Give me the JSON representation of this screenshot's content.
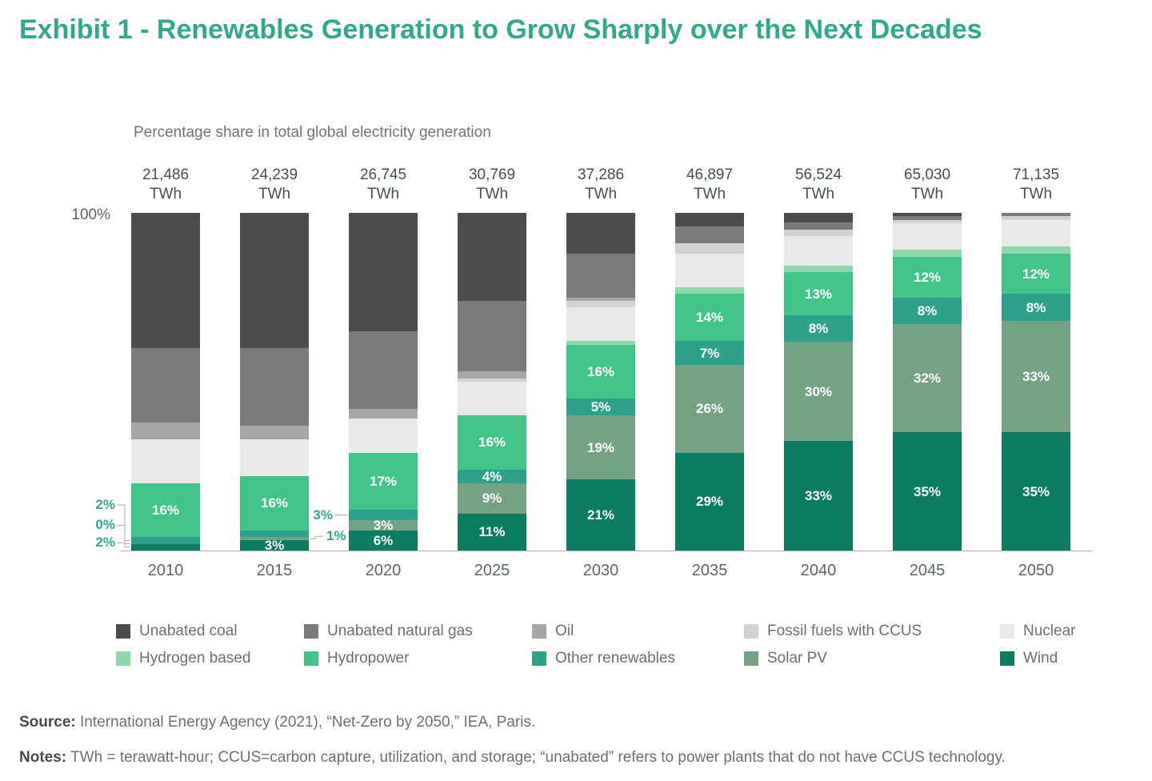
{
  "header": {
    "title": "Exhibit 1 - Renewables Generation to Grow Sharply over the Next Decades"
  },
  "chart_data": {
    "type": "bar",
    "variant": "stacked-percent",
    "subtitle": "Percentage share in total global electricity generation",
    "y_axis_top_label": "100%",
    "ylim": [
      0,
      100
    ],
    "categories": [
      "2010",
      "2015",
      "2020",
      "2025",
      "2030",
      "2035",
      "2040",
      "2045",
      "2050"
    ],
    "totals_twh": [
      "21,486",
      "24,239",
      "26,745",
      "30,769",
      "37,286",
      "46,897",
      "56,524",
      "65,030",
      "71,135"
    ],
    "totals_unit": "TWh",
    "series_bottom_up": [
      {
        "name": "Wind",
        "color": "#0b7b62",
        "values": [
          2,
          3,
          6,
          11,
          21,
          29,
          33,
          35,
          35
        ],
        "labels": [
          null,
          "3%",
          "6%",
          "11%",
          "21%",
          "29%",
          "33%",
          "35%",
          "35%"
        ]
      },
      {
        "name": "Solar PV",
        "color": "#73a284",
        "values": [
          0,
          1,
          3,
          9,
          19,
          26,
          30,
          32,
          33
        ],
        "labels": [
          null,
          null,
          "3%",
          "9%",
          "19%",
          "26%",
          "30%",
          "32%",
          "33%"
        ]
      },
      {
        "name": "Other renewables",
        "color": "#2da18c",
        "values": [
          2,
          2,
          3,
          4,
          5,
          7,
          8,
          8,
          8
        ],
        "labels": [
          null,
          null,
          null,
          "4%",
          "5%",
          "7%",
          "8%",
          "8%",
          "8%"
        ]
      },
      {
        "name": "Hydropower",
        "color": "#41c489",
        "values": [
          16,
          16,
          17,
          16,
          16,
          14,
          13,
          12,
          12
        ],
        "labels": [
          "16%",
          "16%",
          "17%",
          "16%",
          "16%",
          "14%",
          "13%",
          "12%",
          "12%"
        ]
      },
      {
        "name": "Hydrogen based",
        "color": "#8ed9ab",
        "values": [
          0,
          0,
          0,
          0,
          1,
          2,
          2,
          2,
          2
        ],
        "labels": [
          null,
          null,
          null,
          null,
          null,
          null,
          null,
          null,
          null
        ]
      },
      {
        "name": "Nuclear",
        "color": "#e9e9e7",
        "values": [
          13,
          11,
          10,
          10,
          10,
          10,
          9,
          8,
          8
        ],
        "labels": [
          null,
          null,
          null,
          null,
          null,
          null,
          null,
          null,
          null
        ]
      },
      {
        "name": "Fossil fuels with CCUS",
        "color": "#d2d2d0",
        "values": [
          0,
          0,
          0,
          1,
          2,
          3,
          2,
          1,
          1
        ],
        "labels": [
          null,
          null,
          null,
          null,
          null,
          null,
          null,
          null,
          null
        ]
      },
      {
        "name": "Oil",
        "color": "#a6a6a4",
        "values": [
          5,
          4,
          3,
          2,
          1,
          0,
          0,
          0,
          0
        ],
        "labels": [
          null,
          null,
          null,
          null,
          null,
          null,
          null,
          null,
          null
        ]
      },
      {
        "name": "Unabated natural gas",
        "color": "#7b7b79",
        "values": [
          22,
          23,
          23,
          21,
          13,
          5,
          2,
          1,
          1
        ],
        "labels": [
          null,
          null,
          null,
          null,
          null,
          null,
          null,
          null,
          null
        ]
      },
      {
        "name": "Unabated coal",
        "color": "#4c4c4a",
        "values": [
          40,
          40,
          35,
          26,
          12,
          4,
          3,
          1,
          0
        ],
        "labels": [
          null,
          null,
          null,
          null,
          null,
          null,
          null,
          null,
          null
        ]
      }
    ],
    "callouts": [
      {
        "category": "2010",
        "series": "Other renewables",
        "text": "2%",
        "side": "left",
        "label_pct": 13.5
      },
      {
        "category": "2010",
        "series": "Solar PV",
        "text": "0%",
        "side": "left",
        "label_pct": 7.5
      },
      {
        "category": "2010",
        "series": "Wind",
        "text": "2%",
        "side": "left",
        "label_pct": 2.3
      },
      {
        "category": "2015",
        "series": "Solar PV",
        "text": "1%",
        "side": "right",
        "label_pct": 4.2
      },
      {
        "category": "2020",
        "series": "Other renewables",
        "text": "3%",
        "side": "left",
        "label_pct": 10.5
      }
    ],
    "legend_position": "bottom",
    "grid": false
  },
  "legend": {
    "rows": [
      [
        "Unabated coal",
        "Unabated natural gas",
        "Oil",
        "Fossil fuels with CCUS",
        "Nuclear"
      ],
      [
        "Hydrogen based",
        "Hydropower",
        "Other renewables",
        "Solar PV",
        "Wind"
      ]
    ]
  },
  "footer": {
    "source_label": "Source:",
    "source_text": " International Energy Agency (2021), “Net-Zero by 2050,” IEA, Paris.",
    "notes_label": "Notes:",
    "notes_text": " TWh = terawatt-hour; CCUS=carbon capture, utilization, and storage; “unabated” refers to power plants that do not have CCUS technology."
  }
}
